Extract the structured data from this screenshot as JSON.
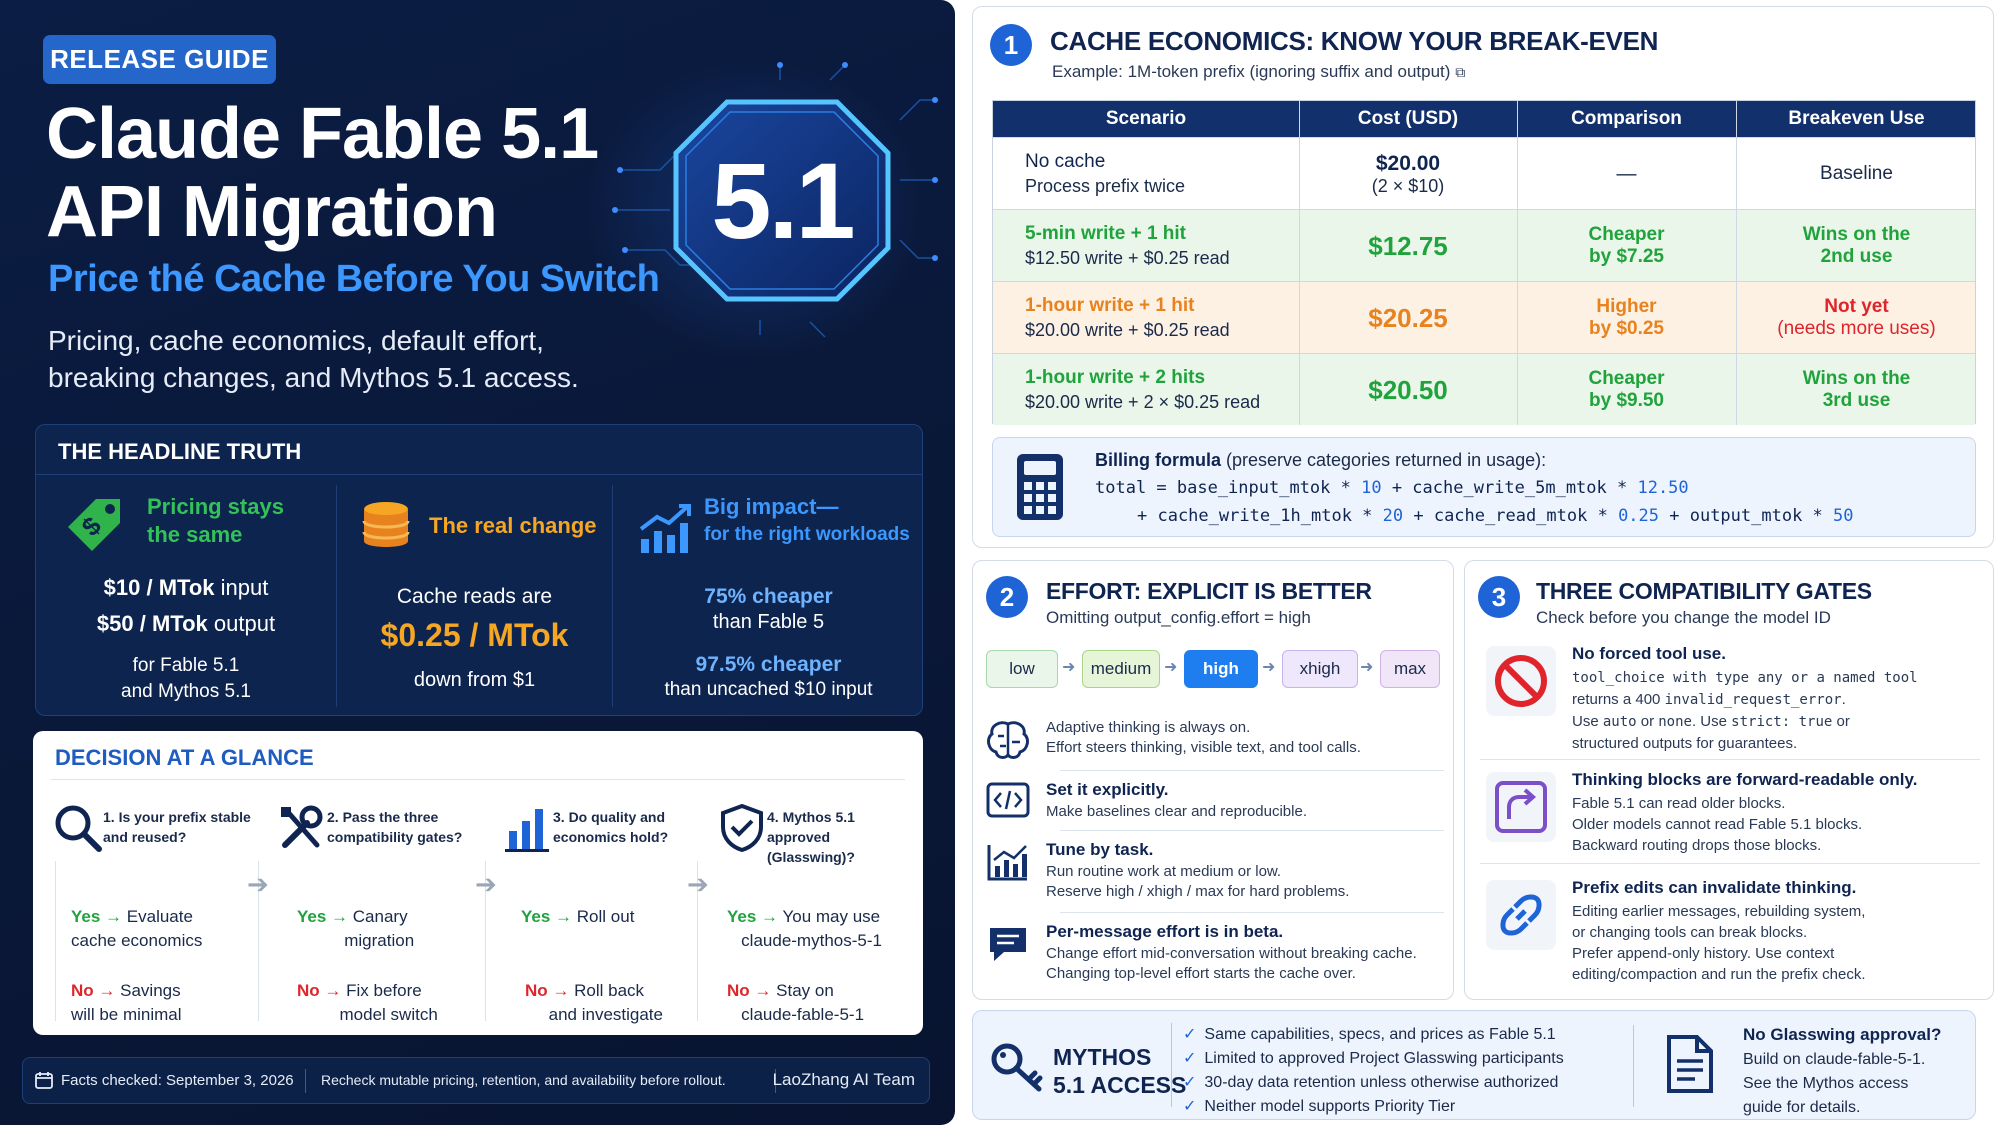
{
  "left": {
    "badge": "RELEASE GUIDE",
    "title_line1": "Claude Fable 5.1",
    "title_line2": "API Migration",
    "subtitle": "Price thé Cache Before You Switch",
    "desc_line1": "Pricing, cache economics, default effort,",
    "desc_line2": "breaking changes, and Mythos 5.1 access.",
    "version": "5.1",
    "truth": {
      "heading": "THE HEADLINE TRUTH",
      "c1": {
        "title1": "Pricing stays",
        "title2": "the same",
        "input": "$10 / MTok",
        "input_unit": " input",
        "output": "$50 / MTok",
        "output_unit": " output",
        "note1": "for Fable 5.1",
        "note2": "and Mythos 5.1"
      },
      "c2": {
        "title": "The real change",
        "line1": "Cache reads are",
        "price": "$0.25 / MTok",
        "line2": "down from $1"
      },
      "c3": {
        "title1": "Big impact—",
        "title2": "for the right workloads",
        "a1": "75% cheaper",
        "a2": "than Fable 5",
        "b1": "97.5% cheaper",
        "b2": "than uncached $10 input"
      }
    },
    "decision": {
      "heading": "DECISION AT A GLANCE",
      "steps": [
        {
          "q": "1. Is your prefix stable and reused?",
          "yes": "Yes",
          "yes_text1": "Evaluate",
          "yes_text2": "cache economics",
          "no": "No",
          "no_text1": "Savings",
          "no_text2": "will be minimal"
        },
        {
          "q": "2. Pass the three compatibility gates?",
          "yes": "Yes",
          "yes_text1": "Canary",
          "yes_text2": "migration",
          "no": "No",
          "no_text1": "Fix before",
          "no_text2": "model switch"
        },
        {
          "q": "3. Do quality and economics hold?",
          "yes": "Yes",
          "yes_text1": "Roll out",
          "yes_text2": "",
          "no": "No",
          "no_text1": "Roll back",
          "no_text2": "and investigate"
        },
        {
          "q": "4. Mythos 5.1 approved (Glasswing)?",
          "yes": "Yes",
          "yes_text1": "You may use",
          "yes_text2": "claude-mythos-5-1",
          "no": "No",
          "no_text1": "Stay on",
          "no_text2": "claude-fable-5-1"
        }
      ]
    },
    "footer": {
      "checked": "Facts checked: September 3, 2026",
      "recheck": "Recheck mutable pricing, retention, and availability before rollout.",
      "team": "LaoZhang AI Team"
    }
  },
  "cache": {
    "num": "1",
    "title": "CACHE ECONOMICS: KNOW YOUR BREAK-EVEN",
    "sub": "Example: 1M-token prefix (ignoring suffix and output)",
    "headers": [
      "Scenario",
      "Cost (USD)",
      "Comparison",
      "Breakeven Use"
    ],
    "rows": [
      {
        "s1": "No cache",
        "s2": "Process prefix twice",
        "cost": "$20.00",
        "cost2": "(2 × $10)",
        "cmp1": "—",
        "cmp2": "",
        "be1": "Baseline",
        "be2": ""
      },
      {
        "s1": "5-min write + 1 hit",
        "s2": "$12.50 write + $0.25 read",
        "cost": "$12.75",
        "cost2": "",
        "cmp1": "Cheaper",
        "cmp2": "by $7.25",
        "be1": "Wins on the",
        "be2": "2nd use"
      },
      {
        "s1": "1-hour write + 1 hit",
        "s2": "$20.00 write + $0.25 read",
        "cost": "$20.25",
        "cost2": "",
        "cmp1": "Higher",
        "cmp2": "by $0.25",
        "be1": "Not yet",
        "be2": "(needs more uses)"
      },
      {
        "s1": "1-hour write + 2 hits",
        "s2": "$20.00 write + 2 × $0.25 read",
        "cost": "$20.50",
        "cost2": "",
        "cmp1": "Cheaper",
        "cmp2": "by $9.50",
        "be1": "Wins on the",
        "be2": "3rd use"
      }
    ],
    "billing_title": "Billing formula",
    "billing_note": " (preserve categories returned in usage):",
    "code1": "total = base_input_mtok * ",
    "code1_k1": "10",
    "code1_b": " + cache_write_5m_mtok * ",
    "code1_k2": "12.50",
    "code2": "+ cache_write_1h_mtok * ",
    "code2_k1": "20",
    "code2_b": " + cache_read_mtok * ",
    "code2_k2": "0.25",
    "code2_c": " + output_mtok * ",
    "code2_k3": "50"
  },
  "effort": {
    "num": "2",
    "title": "EFFORT: EXPLICIT IS BETTER",
    "sub": "Omitting output_config.effort = high",
    "levels": [
      "low",
      "medium",
      "high",
      "xhigh",
      "max"
    ],
    "items": [
      {
        "t": "",
        "d1": "Adaptive thinking is always on.",
        "d2": "Effort steers thinking, visible text, and tool calls."
      },
      {
        "t": "Set it explicitly.",
        "d1": "Make baselines clear and reproducible.",
        "d2": ""
      },
      {
        "t": "Tune by task.",
        "d1": "Run routine work at medium or low.",
        "d2": "Reserve high / xhigh / max for hard problems."
      },
      {
        "t": "Per-message effort is in beta.",
        "d1": "Change effort mid-conversation without breaking cache.",
        "d2": "Changing top-level effort starts the cache over."
      }
    ]
  },
  "gates": {
    "num": "3",
    "title": "THREE COMPATIBILITY GATES",
    "sub": "Check before you change the model ID",
    "g1": {
      "t": "No forced tool use.",
      "m1": "tool_choice",
      "l1a": " with type ",
      "m2": "any",
      "l1b": " or a named tool",
      "l2a": "returns a 400 ",
      "m3": "invalid_request_error",
      "l2b": ".",
      "l3a": "Use ",
      "m4": "auto",
      "l3b": " or ",
      "m5": "none",
      "l3c": ". Use ",
      "m6": "strict: true",
      "l3d": " or",
      "l4": "structured outputs for guarantees."
    },
    "g2": {
      "t": "Thinking blocks are forward-readable only.",
      "d1": "Fable 5.1 can read older blocks.",
      "d2": "Older models cannot read Fable 5.1 blocks.",
      "d3": "Backward routing drops those blocks."
    },
    "g3": {
      "t": "Prefix edits can invalidate thinking.",
      "d1": "Editing earlier messages, rebuilding system,",
      "d2": "or changing tools can break blocks.",
      "d3": "Prefer append-only history. Use context",
      "d4": "editing/compaction and run the prefix check."
    }
  },
  "mythos": {
    "title1": "MYTHOS",
    "title2": "5.1 ACCESS",
    "items": [
      "Same capabilities, specs, and prices as Fable 5.1",
      "Limited to approved Project Glasswing participants",
      "30-day data retention unless otherwise authorized",
      "Neither model supports Priority Tier"
    ],
    "na_title": "No Glasswing approval?",
    "na1": "Build on claude-fable-5-1.",
    "na2": "See the Mythos access",
    "na3": "guide for details."
  },
  "colors": {
    "green": "#20a33c",
    "red": "#e0242b",
    "orange": "#e8821e",
    "accent": "#1e64d6",
    "navy": "#0b1d44"
  }
}
